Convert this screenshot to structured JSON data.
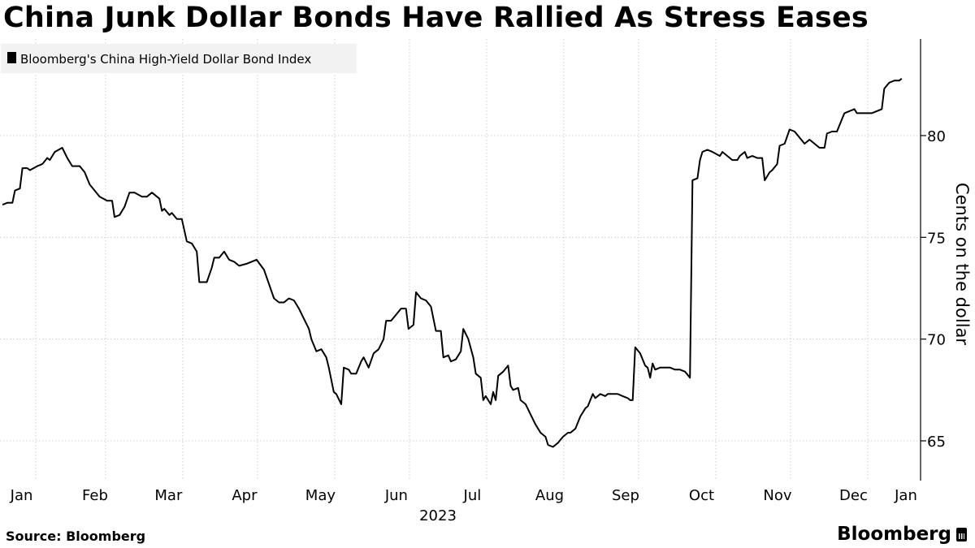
{
  "title": "China Junk Dollar Bonds Have Rallied As Stress Eases",
  "source": "Source: Bloomberg",
  "brand": "Bloomberg",
  "brand_icon": "bloomberg-terminal-icon",
  "chart_data": {
    "type": "line",
    "title": "China Junk Dollar Bonds Have Rallied As Stress Eases",
    "ylabel": "Cents on the dollar",
    "xlabel": "2023",
    "year_label": "2023",
    "y_axis_position": "right",
    "grid": true,
    "legend_position": "top-left",
    "ylim": [
      63,
      84.5
    ],
    "yticks": [
      65,
      70,
      75,
      80
    ],
    "x_months": [
      "Jan",
      "Feb",
      "Mar",
      "Apr",
      "May",
      "Jun",
      "Jul",
      "Aug",
      "Sep",
      "Oct",
      "Nov",
      "Dec",
      "Jan"
    ],
    "series": [
      {
        "name": "Bloomberg's China High-Yield Dollar Bond Index",
        "color": "#000000",
        "points": [
          [
            "2023-01-02",
            76.6
          ],
          [
            "2023-01-04",
            76.7
          ],
          [
            "2023-01-06",
            76.7
          ],
          [
            "2023-01-07",
            77.3
          ],
          [
            "2023-01-09",
            77.4
          ],
          [
            "2023-01-10",
            78.4
          ],
          [
            "2023-01-12",
            78.4
          ],
          [
            "2023-01-13",
            78.3
          ],
          [
            "2023-01-16",
            78.5
          ],
          [
            "2023-01-18",
            78.6
          ],
          [
            "2023-01-20",
            78.9
          ],
          [
            "2023-01-21",
            78.8
          ],
          [
            "2023-01-23",
            79.2
          ],
          [
            "2023-01-26",
            79.4
          ],
          [
            "2023-01-28",
            78.9
          ],
          [
            "2023-01-30",
            78.5
          ],
          [
            "2023-02-02",
            78.5
          ],
          [
            "2023-02-04",
            78.2
          ],
          [
            "2023-02-06",
            77.6
          ],
          [
            "2023-02-08",
            77.3
          ],
          [
            "2023-02-10",
            77.0
          ],
          [
            "2023-02-13",
            76.8
          ],
          [
            "2023-02-15",
            76.8
          ],
          [
            "2023-02-16",
            76.0
          ],
          [
            "2023-02-18",
            76.1
          ],
          [
            "2023-02-20",
            76.5
          ],
          [
            "2023-02-22",
            77.2
          ],
          [
            "2023-02-24",
            77.2
          ],
          [
            "2023-02-27",
            77.0
          ],
          [
            "2023-03-01",
            77.0
          ],
          [
            "2023-03-03",
            77.2
          ],
          [
            "2023-03-06",
            76.9
          ],
          [
            "2023-03-07",
            76.3
          ],
          [
            "2023-03-08",
            76.4
          ],
          [
            "2023-03-10",
            76.1
          ],
          [
            "2023-03-11",
            76.2
          ],
          [
            "2023-03-13",
            75.9
          ],
          [
            "2023-03-15",
            75.9
          ],
          [
            "2023-03-17",
            74.8
          ],
          [
            "2023-03-19",
            74.7
          ],
          [
            "2023-03-21",
            74.3
          ],
          [
            "2023-03-22",
            72.8
          ],
          [
            "2023-03-24",
            72.8
          ],
          [
            "2023-03-25",
            72.8
          ],
          [
            "2023-03-27",
            73.5
          ],
          [
            "2023-03-28",
            74.0
          ],
          [
            "2023-03-30",
            74.0
          ],
          [
            "2023-04-01",
            74.3
          ],
          [
            "2023-04-03",
            73.9
          ],
          [
            "2023-04-05",
            73.8
          ],
          [
            "2023-04-07",
            73.6
          ],
          [
            "2023-04-10",
            73.7
          ],
          [
            "2023-04-12",
            73.8
          ],
          [
            "2023-04-14",
            73.9
          ],
          [
            "2023-04-17",
            73.4
          ],
          [
            "2023-04-19",
            72.7
          ],
          [
            "2023-04-21",
            72.0
          ],
          [
            "2023-04-23",
            71.8
          ],
          [
            "2023-04-25",
            71.8
          ],
          [
            "2023-04-27",
            72.0
          ],
          [
            "2023-04-29",
            71.9
          ],
          [
            "2023-05-01",
            71.5
          ],
          [
            "2023-05-03",
            71.0
          ],
          [
            "2023-05-05",
            70.5
          ],
          [
            "2023-05-06",
            70.0
          ],
          [
            "2023-05-08",
            69.4
          ],
          [
            "2023-05-10",
            69.5
          ],
          [
            "2023-05-12",
            69.1
          ],
          [
            "2023-05-13",
            68.6
          ],
          [
            "2023-05-15",
            67.4
          ],
          [
            "2023-05-16",
            67.3
          ],
          [
            "2023-05-18",
            66.8
          ],
          [
            "2023-05-19",
            68.6
          ],
          [
            "2023-05-21",
            68.5
          ],
          [
            "2023-05-22",
            68.3
          ],
          [
            "2023-05-24",
            68.3
          ],
          [
            "2023-05-26",
            68.9
          ],
          [
            "2023-05-27",
            69.1
          ],
          [
            "2023-05-29",
            68.6
          ],
          [
            "2023-05-31",
            69.3
          ],
          [
            "2023-06-02",
            69.5
          ],
          [
            "2023-06-04",
            70.0
          ],
          [
            "2023-06-05",
            70.9
          ],
          [
            "2023-06-07",
            70.9
          ],
          [
            "2023-06-09",
            71.2
          ],
          [
            "2023-06-11",
            71.5
          ],
          [
            "2023-06-13",
            71.5
          ],
          [
            "2023-06-14",
            70.5
          ],
          [
            "2023-06-16",
            70.7
          ],
          [
            "2023-06-17",
            72.3
          ],
          [
            "2023-06-19",
            72.0
          ],
          [
            "2023-06-21",
            71.9
          ],
          [
            "2023-06-23",
            71.6
          ],
          [
            "2023-06-25",
            70.4
          ],
          [
            "2023-06-27",
            70.4
          ],
          [
            "2023-06-28",
            69.1
          ],
          [
            "2023-06-30",
            69.2
          ],
          [
            "2023-07-01",
            68.9
          ],
          [
            "2023-07-03",
            69.0
          ],
          [
            "2023-07-05",
            69.4
          ],
          [
            "2023-07-06",
            70.5
          ],
          [
            "2023-07-08",
            70.0
          ],
          [
            "2023-07-10",
            69.1
          ],
          [
            "2023-07-11",
            68.3
          ],
          [
            "2023-07-13",
            68.1
          ],
          [
            "2023-07-14",
            67.0
          ],
          [
            "2023-07-15",
            67.2
          ],
          [
            "2023-07-17",
            66.8
          ],
          [
            "2023-07-18",
            67.4
          ],
          [
            "2023-07-19",
            67.0
          ],
          [
            "2023-07-20",
            68.2
          ],
          [
            "2023-07-22",
            68.4
          ],
          [
            "2023-07-24",
            68.7
          ],
          [
            "2023-07-25",
            67.7
          ],
          [
            "2023-07-26",
            67.5
          ],
          [
            "2023-07-28",
            67.6
          ],
          [
            "2023-07-29",
            67.0
          ],
          [
            "2023-07-31",
            66.8
          ],
          [
            "2023-08-02",
            66.3
          ],
          [
            "2023-08-04",
            65.8
          ],
          [
            "2023-08-06",
            65.4
          ],
          [
            "2023-08-08",
            65.2
          ],
          [
            "2023-08-09",
            64.8
          ],
          [
            "2023-08-11",
            64.7
          ],
          [
            "2023-08-13",
            64.9
          ],
          [
            "2023-08-15",
            65.2
          ],
          [
            "2023-08-17",
            65.4
          ],
          [
            "2023-08-18",
            65.4
          ],
          [
            "2023-08-20",
            65.6
          ],
          [
            "2023-08-22",
            66.2
          ],
          [
            "2023-08-24",
            66.6
          ],
          [
            "2023-08-25",
            66.7
          ],
          [
            "2023-08-27",
            67.3
          ],
          [
            "2023-08-28",
            67.1
          ],
          [
            "2023-08-30",
            67.3
          ],
          [
            "2023-09-01",
            67.2
          ],
          [
            "2023-09-02",
            67.3
          ],
          [
            "2023-09-04",
            67.3
          ],
          [
            "2023-09-06",
            67.3
          ],
          [
            "2023-09-08",
            67.2
          ],
          [
            "2023-09-10",
            67.1
          ],
          [
            "2023-09-11",
            67.0
          ],
          [
            "2023-09-12",
            67.0
          ],
          [
            "2023-09-13",
            69.6
          ],
          [
            "2023-09-15",
            69.3
          ],
          [
            "2023-09-17",
            68.7
          ],
          [
            "2023-09-18",
            68.6
          ],
          [
            "2023-09-19",
            68.1
          ],
          [
            "2023-09-20",
            68.8
          ],
          [
            "2023-09-21",
            68.5
          ],
          [
            "2023-09-23",
            68.6
          ],
          [
            "2023-09-25",
            68.6
          ],
          [
            "2023-09-27",
            68.6
          ],
          [
            "2023-09-29",
            68.5
          ],
          [
            "2023-10-01",
            68.5
          ],
          [
            "2023-10-03",
            68.4
          ],
          [
            "2023-10-05",
            68.1
          ],
          [
            "2023-10-06",
            77.8
          ],
          [
            "2023-10-08",
            77.9
          ],
          [
            "2023-10-09",
            78.8
          ],
          [
            "2023-10-10",
            79.2
          ],
          [
            "2023-10-12",
            79.3
          ],
          [
            "2023-10-14",
            79.2
          ],
          [
            "2023-10-17",
            79.0
          ],
          [
            "2023-10-18",
            79.2
          ],
          [
            "2023-10-20",
            79.0
          ],
          [
            "2023-10-22",
            78.8
          ],
          [
            "2023-10-24",
            78.8
          ],
          [
            "2023-10-25",
            79.0
          ],
          [
            "2023-10-27",
            79.2
          ],
          [
            "2023-10-28",
            78.9
          ],
          [
            "2023-10-30",
            79.0
          ],
          [
            "2023-11-01",
            78.9
          ],
          [
            "2023-11-03",
            78.9
          ],
          [
            "2023-11-04",
            77.8
          ],
          [
            "2023-11-06",
            78.2
          ],
          [
            "2023-11-07",
            78.3
          ],
          [
            "2023-11-09",
            78.6
          ],
          [
            "2023-11-10",
            79.5
          ],
          [
            "2023-11-12",
            79.6
          ],
          [
            "2023-11-14",
            80.3
          ],
          [
            "2023-11-16",
            80.2
          ],
          [
            "2023-11-18",
            79.9
          ],
          [
            "2023-11-20",
            79.6
          ],
          [
            "2023-11-22",
            79.8
          ],
          [
            "2023-11-24",
            79.6
          ],
          [
            "2023-11-26",
            79.4
          ],
          [
            "2023-11-28",
            79.4
          ],
          [
            "2023-11-29",
            80.1
          ],
          [
            "2023-12-01",
            80.2
          ],
          [
            "2023-12-03",
            80.2
          ],
          [
            "2023-12-05",
            80.8
          ],
          [
            "2023-12-06",
            81.1
          ],
          [
            "2023-12-08",
            81.2
          ],
          [
            "2023-12-10",
            81.3
          ],
          [
            "2023-12-11",
            81.1
          ],
          [
            "2023-12-13",
            81.1
          ],
          [
            "2023-12-15",
            81.1
          ],
          [
            "2023-12-17",
            81.1
          ],
          [
            "2023-12-19",
            81.2
          ],
          [
            "2023-12-21",
            81.3
          ],
          [
            "2023-12-22",
            82.3
          ],
          [
            "2023-12-24",
            82.6
          ],
          [
            "2023-12-26",
            82.7
          ],
          [
            "2023-12-28",
            82.7
          ],
          [
            "2023-12-29",
            82.8
          ]
        ]
      }
    ]
  }
}
